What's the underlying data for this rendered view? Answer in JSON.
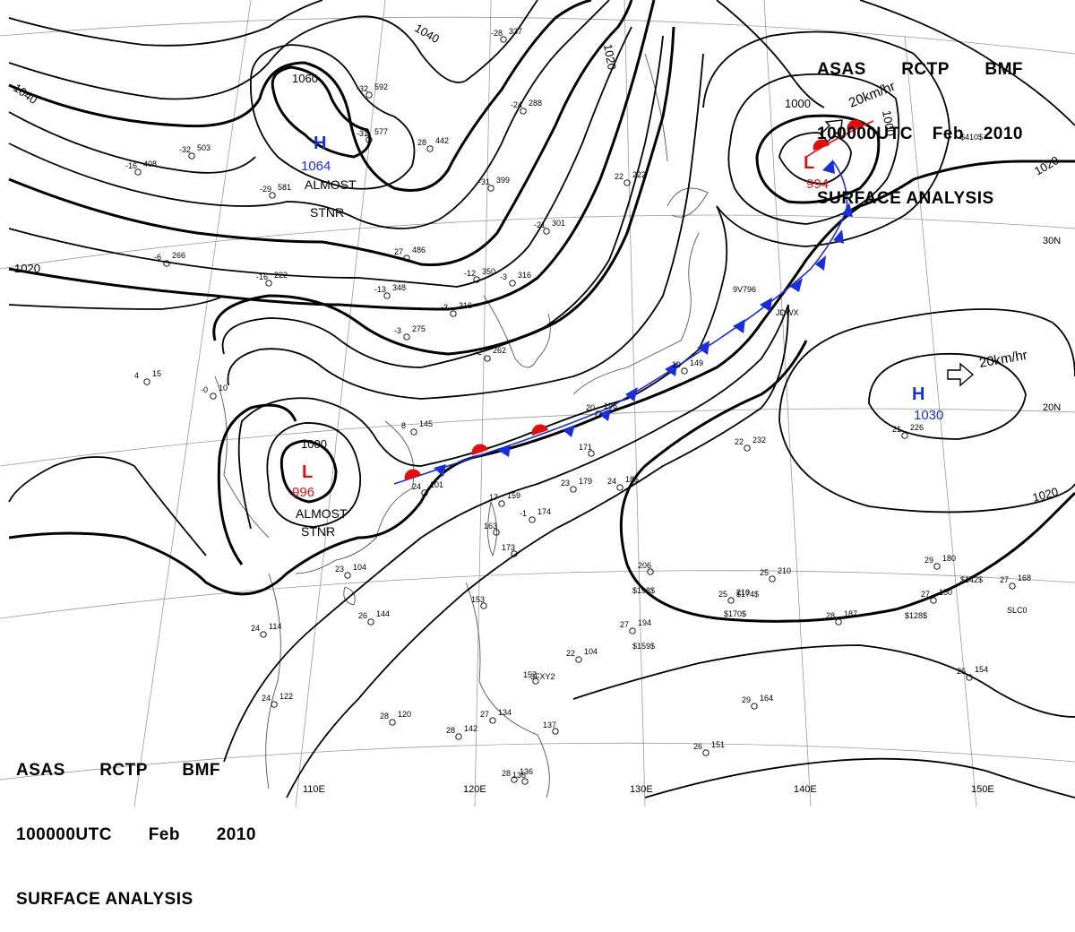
{
  "header": {
    "line1": [
      "ASAS",
      "RCTP",
      "BMF"
    ],
    "line2": [
      "100000UTC",
      "Feb",
      "2010"
    ],
    "line3": "SURFACE ANALYSIS"
  },
  "colors": {
    "isobar": "#000000",
    "high": "#1a2ed8",
    "low": "#e01010",
    "cold_front": "#1a2ed8",
    "warm_front": "#e01010",
    "grid": "#888888",
    "coast": "#555555"
  },
  "isobar_labels": [
    "1040",
    "1040",
    "1020",
    "1060",
    "1020",
    "1000",
    "1000",
    "1020",
    "1000",
    "1020"
  ],
  "pressure_centers": [
    {
      "symbol": "H",
      "value": "1064",
      "note": "ALMOST STNR",
      "type": "high"
    },
    {
      "symbol": "L",
      "value": "994",
      "type": "low"
    },
    {
      "symbol": "L",
      "value": "996",
      "note": "ALMOST STNR",
      "type": "low"
    },
    {
      "symbol": "H",
      "value": "1030",
      "type": "high"
    }
  ],
  "motion_labels": [
    "20km/hr",
    "20km/hr"
  ],
  "longitude_labels": [
    "110E",
    "120E",
    "130E",
    "140E",
    "150E"
  ],
  "latitude_labels": [
    "30N",
    "20N"
  ],
  "station_plots": [
    {
      "t": "-28",
      "p": "337"
    },
    {
      "t": "-32",
      "p": "592"
    },
    {
      "t": "-31",
      "p": "577"
    },
    {
      "t": "-24",
      "p": "288"
    },
    {
      "t": "28",
      "p": "442"
    },
    {
      "t": "-16",
      "p": "408"
    },
    {
      "t": "-32",
      "p": "503"
    },
    {
      "t": "-29",
      "p": "581"
    },
    {
      "t": "-31",
      "p": "399"
    },
    {
      "t": "22",
      "p": "222"
    },
    {
      "t": "-21",
      "p": "301"
    },
    {
      "t": "27",
      "p": "486"
    },
    {
      "t": "-12",
      "p": "350"
    },
    {
      "t": "-3",
      "p": "316"
    },
    {
      "t": "-13",
      "p": "348"
    },
    {
      "t": "-3",
      "p": "316"
    },
    {
      "t": "-3",
      "p": "275"
    },
    {
      "t": "-2",
      "p": "262"
    },
    {
      "t": "8",
      "p": "145"
    },
    {
      "t": "17",
      "p": "159"
    },
    {
      "t": "-1",
      "p": "174"
    },
    {
      "t": "163",
      "p": ""
    },
    {
      "t": "173",
      "p": ""
    },
    {
      "t": "23",
      "p": "179"
    },
    {
      "t": "24",
      "p": "185"
    },
    {
      "t": "171",
      "p": ""
    },
    {
      "t": "20",
      "p": "196"
    },
    {
      "t": "19",
      "p": "149"
    },
    {
      "t": "22",
      "p": "232"
    },
    {
      "t": "23",
      "p": "104"
    },
    {
      "t": "24",
      "p": "101"
    },
    {
      "t": "26",
      "p": "144"
    },
    {
      "t": "24",
      "p": "114"
    },
    {
      "t": "24",
      "p": "122"
    },
    {
      "t": "28",
      "p": "120"
    },
    {
      "t": "28",
      "p": "142"
    },
    {
      "t": "27",
      "p": "134"
    },
    {
      "t": "28",
      "p": "136"
    },
    {
      "t": "157",
      "p": ""
    },
    {
      "t": "22",
      "p": "104"
    },
    {
      "t": "27",
      "p": "194"
    },
    {
      "t": "206",
      "p": ""
    },
    {
      "t": "25",
      "p": "210"
    },
    {
      "t": "25",
      "p": "210"
    },
    {
      "t": "29",
      "p": "180"
    },
    {
      "t": "27",
      "p": "150"
    },
    {
      "t": "27",
      "p": "168"
    },
    {
      "t": "28",
      "p": "187"
    },
    {
      "t": "26",
      "p": "154"
    },
    {
      "t": "26",
      "p": "151"
    },
    {
      "t": "29",
      "p": "164"
    },
    {
      "t": "21",
      "p": "226"
    },
    {
      "t": "-6",
      "p": "266"
    },
    {
      "t": "-16",
      "p": "222"
    },
    {
      "t": "-0",
      "p": "10"
    },
    {
      "t": "4",
      "p": "15"
    },
    {
      "t": "153",
      "p": ""
    },
    {
      "t": "137",
      "p": ""
    },
    {
      "t": "136",
      "p": ""
    }
  ],
  "station_ids": [
    "9V796",
    "JDWX",
    "3FXY2",
    "SLC0"
  ],
  "ship_pressures": [
    "$198$",
    "$170$",
    "$174$",
    "$159$",
    "$142$",
    "$128$",
    "$410$"
  ]
}
